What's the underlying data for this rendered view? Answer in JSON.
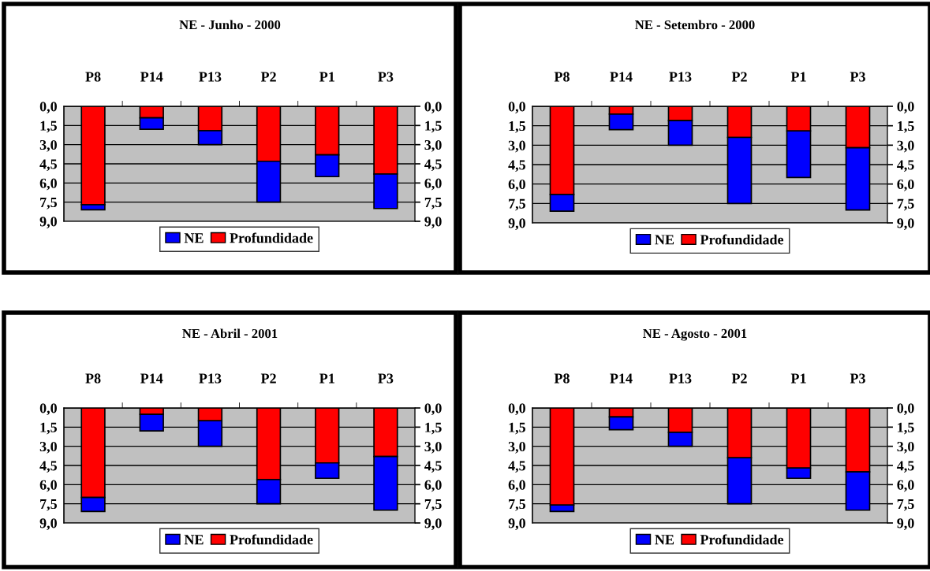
{
  "chart_data": [
    {
      "type": "bar",
      "title": "NE - Junho - 2000",
      "stacked": true,
      "categories": [
        "P8",
        "P14",
        "P13",
        "P2",
        "P1",
        "P3"
      ],
      "series": [
        {
          "name": "Profundidade",
          "color": "#ff0000",
          "values": [
            7.7,
            0.9,
            1.9,
            4.3,
            3.8,
            5.3
          ]
        },
        {
          "name": "NE",
          "color": "#0000ff",
          "values": [
            0.4,
            0.9,
            1.1,
            3.2,
            1.7,
            2.7
          ]
        }
      ],
      "ylim": [
        9,
        0
      ],
      "yticks": [
        {
          "value": 0,
          "label": "0,0"
        },
        {
          "value": 1.5,
          "label": "1,5"
        },
        {
          "value": 3,
          "label": "3,0"
        },
        {
          "value": 4.5,
          "label": "4,5"
        },
        {
          "value": 6,
          "label": "6,0"
        },
        {
          "value": 7.5,
          "label": "7,5"
        },
        {
          "value": 9,
          "label": "9,0"
        }
      ],
      "y2lim": [
        9,
        0
      ],
      "y2ticks": [
        {
          "value": 0,
          "label": "0,0"
        },
        {
          "value": 1.5,
          "label": "1,5"
        },
        {
          "value": 3,
          "label": "3,0"
        },
        {
          "value": 4.5,
          "label": "4,5"
        },
        {
          "value": 6,
          "label": "6,0"
        },
        {
          "value": 7.5,
          "label": "7,5"
        },
        {
          "value": 9,
          "label": "9,0"
        }
      ],
      "grid": "y",
      "legend": "bottom"
    },
    {
      "type": "bar",
      "title": "NE - Setembro - 2000",
      "stacked": true,
      "categories": [
        "P8",
        "P14",
        "P13",
        "P2",
        "P1",
        "P3"
      ],
      "series": [
        {
          "name": "Profundidade",
          "color": "#ff0000",
          "values": [
            6.8,
            0.6,
            1.1,
            2.4,
            1.9,
            3.2
          ]
        },
        {
          "name": "NE",
          "color": "#0000ff",
          "values": [
            1.3,
            1.2,
            1.9,
            5.1,
            3.6,
            4.8
          ]
        }
      ],
      "ylim": [
        9,
        0
      ],
      "yticks": [
        {
          "value": 0,
          "label": "0,0"
        },
        {
          "value": 1.5,
          "label": "1,5"
        },
        {
          "value": 3,
          "label": "3,0"
        },
        {
          "value": 4.5,
          "label": "4,5"
        },
        {
          "value": 6,
          "label": "6,0"
        },
        {
          "value": 7.5,
          "label": "7,5"
        },
        {
          "value": 9,
          "label": "9,0"
        }
      ],
      "y2lim": [
        9,
        0
      ],
      "y2ticks": [
        {
          "value": 0,
          "label": "0,0"
        },
        {
          "value": 1.5,
          "label": "1,5"
        },
        {
          "value": 3,
          "label": "3,0"
        },
        {
          "value": 4.5,
          "label": "4,5"
        },
        {
          "value": 6,
          "label": "6,0"
        },
        {
          "value": 7.5,
          "label": "7,5"
        },
        {
          "value": 9,
          "label": "9,0"
        }
      ],
      "grid": "y",
      "legend": "bottom"
    },
    {
      "type": "bar",
      "title": "NE - Abril - 2001",
      "stacked": true,
      "categories": [
        "P8",
        "P14",
        "P13",
        "P2",
        "P1",
        "P3"
      ],
      "series": [
        {
          "name": "Profundidade",
          "color": "#ff0000",
          "values": [
            7.0,
            0.5,
            1.0,
            5.6,
            4.3,
            3.8
          ]
        },
        {
          "name": "NE",
          "color": "#0000ff",
          "values": [
            1.1,
            1.3,
            2.0,
            1.9,
            1.2,
            4.2
          ]
        }
      ],
      "ylim": [
        9,
        0
      ],
      "yticks": [
        {
          "value": 0,
          "label": "0,0"
        },
        {
          "value": 1.5,
          "label": "1,5"
        },
        {
          "value": 3,
          "label": "3,0"
        },
        {
          "value": 4.5,
          "label": "4,5"
        },
        {
          "value": 6,
          "label": "6,0"
        },
        {
          "value": 7.5,
          "label": "7,5"
        },
        {
          "value": 9,
          "label": "9,0"
        }
      ],
      "y2lim": [
        9,
        0
      ],
      "y2ticks": [
        {
          "value": 0,
          "label": "0,0"
        },
        {
          "value": 1.5,
          "label": "1,5"
        },
        {
          "value": 3,
          "label": "3,0"
        },
        {
          "value": 4.5,
          "label": "4,5"
        },
        {
          "value": 6,
          "label": "6,0"
        },
        {
          "value": 7.5,
          "label": "7,5"
        },
        {
          "value": 9,
          "label": "9,0"
        }
      ],
      "grid": "y",
      "legend": "bottom"
    },
    {
      "type": "bar",
      "title": "NE - Agosto - 2001",
      "stacked": true,
      "categories": [
        "P8",
        "P14",
        "P13",
        "P2",
        "P1",
        "P3"
      ],
      "series": [
        {
          "name": "Profundidade",
          "color": "#ff0000",
          "values": [
            7.6,
            0.7,
            1.9,
            3.9,
            4.7,
            5.0
          ]
        },
        {
          "name": "NE",
          "color": "#0000ff",
          "values": [
            0.5,
            1.0,
            1.1,
            3.6,
            0.8,
            3.0
          ]
        }
      ],
      "ylim": [
        9,
        0
      ],
      "yticks": [
        {
          "value": 0,
          "label": "0,0"
        },
        {
          "value": 1.5,
          "label": "1,5"
        },
        {
          "value": 3,
          "label": "3,0"
        },
        {
          "value": 4.5,
          "label": "4,5"
        },
        {
          "value": 6,
          "label": "6,0"
        },
        {
          "value": 7.5,
          "label": "7,5"
        },
        {
          "value": 9,
          "label": "9,0"
        }
      ],
      "y2lim": [
        9,
        0
      ],
      "y2ticks": [
        {
          "value": 0,
          "label": "0,0"
        },
        {
          "value": 1.5,
          "label": "1,5"
        },
        {
          "value": 3,
          "label": "3,0"
        },
        {
          "value": 4.5,
          "label": "4,5"
        },
        {
          "value": 6,
          "label": "6,0"
        },
        {
          "value": 7.5,
          "label": "7,5"
        },
        {
          "value": 9,
          "label": "9,0"
        }
      ],
      "grid": "y",
      "legend": "bottom"
    }
  ]
}
